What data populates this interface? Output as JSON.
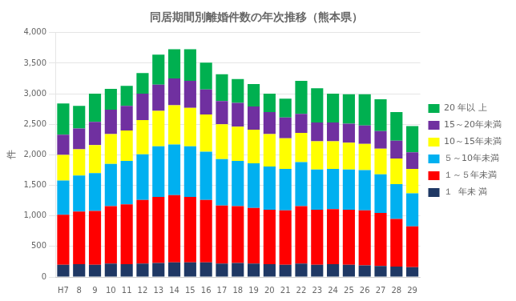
{
  "chart_data": {
    "type": "bar",
    "stacked": true,
    "title": "同居期間別離婚件数の年次推移（熊本県）",
    "ylabel": "件",
    "categories": [
      "H7",
      "8",
      "9",
      "10",
      "11",
      "12",
      "13",
      "14",
      "15",
      "16",
      "17",
      "18",
      "19",
      "20",
      "21",
      "22",
      "23",
      "24",
      "25",
      "26",
      "27",
      "28",
      "29"
    ],
    "series": [
      {
        "name": "１  年未 満",
        "color": "#1f3864",
        "values": [
          200,
          210,
          200,
          220,
          210,
          220,
          230,
          240,
          240,
          240,
          220,
          230,
          220,
          210,
          200,
          220,
          200,
          210,
          200,
          190,
          180,
          170,
          160
        ]
      },
      {
        "name": "１～５年未満",
        "color": "#ff0000",
        "values": [
          820,
          860,
          880,
          940,
          980,
          1040,
          1080,
          1100,
          1070,
          1020,
          950,
          930,
          910,
          890,
          890,
          940,
          900,
          900,
          900,
          900,
          870,
          780,
          670
        ]
      },
      {
        "name": "５～10年未満",
        "color": "#00b0f0",
        "values": [
          560,
          590,
          620,
          690,
          710,
          750,
          830,
          830,
          830,
          790,
          760,
          740,
          730,
          710,
          680,
          720,
          660,
          660,
          660,
          660,
          630,
          570,
          540
        ]
      },
      {
        "name": "10～15年未満",
        "color": "#ffff00",
        "values": [
          420,
          430,
          460,
          490,
          500,
          560,
          580,
          640,
          630,
          610,
          570,
          560,
          550,
          530,
          500,
          480,
          460,
          450,
          440,
          430,
          420,
          420,
          400
        ]
      },
      {
        "name": "15～20年未満",
        "color": "#7030a0",
        "values": [
          330,
          340,
          380,
          400,
          400,
          430,
          430,
          440,
          440,
          410,
          380,
          390,
          380,
          360,
          340,
          310,
          310,
          310,
          310,
          300,
          290,
          290,
          270
        ]
      },
      {
        "name": "20 年以 上",
        "color": "#00b050",
        "values": [
          510,
          370,
          460,
          340,
          330,
          340,
          490,
          480,
          520,
          440,
          440,
          390,
          370,
          300,
          310,
          540,
          560,
          470,
          480,
          510,
          520,
          470,
          430
        ]
      }
    ],
    "ylim": [
      0,
      4000
    ],
    "yticks": [
      0,
      500,
      {
        "value": 1000,
        "label": "1,000"
      },
      {
        "value": 1500,
        "label": "1,500"
      },
      {
        "value": 2000,
        "label": "2,000"
      },
      {
        "value": 2500,
        "label": "2,500"
      },
      {
        "value": 3000,
        "label": "3,000"
      },
      {
        "value": 3500,
        "label": "3,500"
      },
      {
        "value": 4000,
        "label": "4,000"
      }
    ],
    "grid": true,
    "legend": "right"
  }
}
